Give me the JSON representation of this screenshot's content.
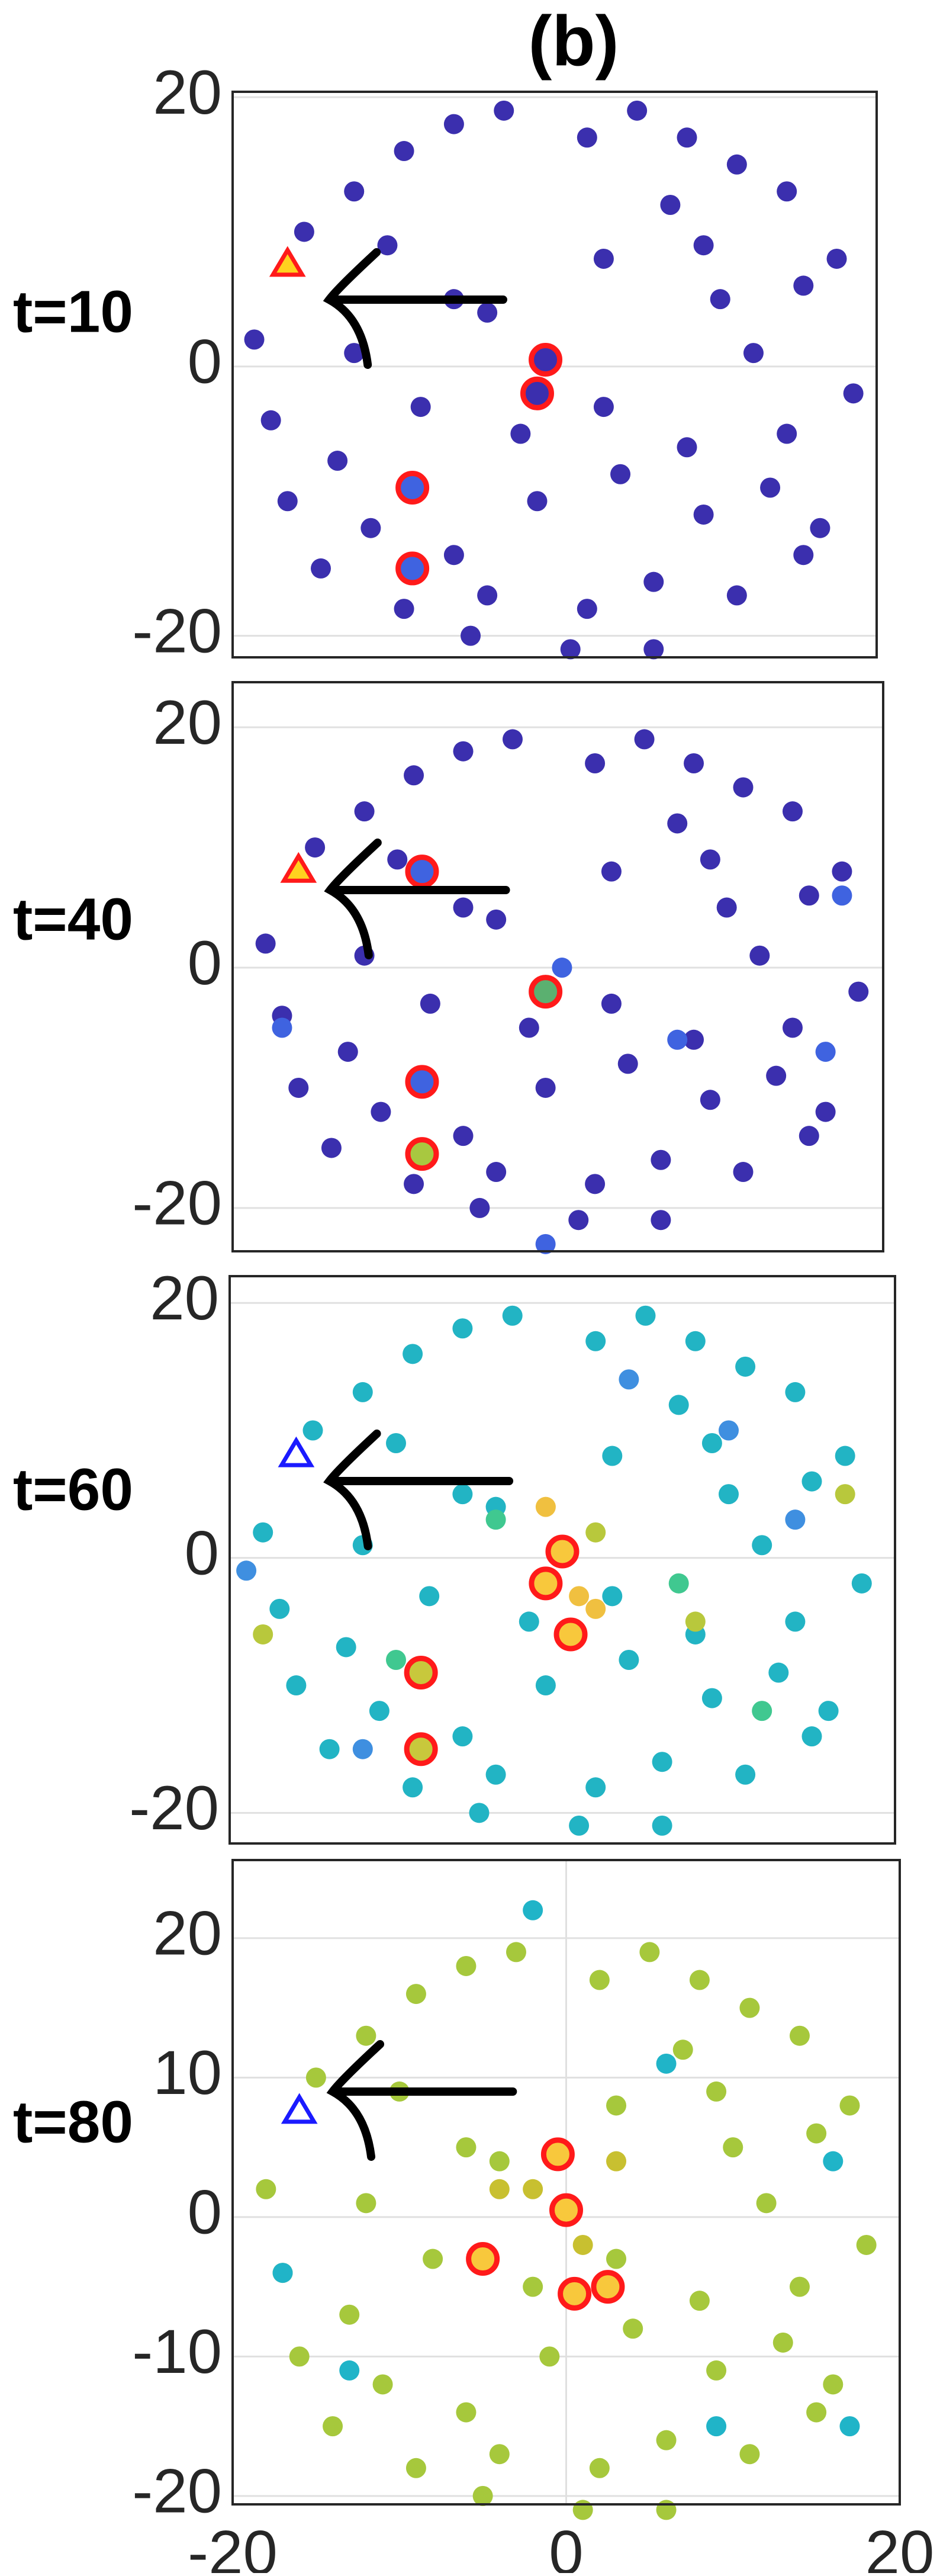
{
  "title": "(b)",
  "chart_data": [
    {
      "type": "scatter",
      "label": "t=10",
      "xlim": [
        -19.3,
        19.4
      ],
      "ylim": [
        -21.6,
        20.4
      ],
      "yticks": [
        -20,
        0,
        20
      ],
      "grid": true,
      "series": [
        {
          "color": "#3b2fae",
          "marker": "circle",
          "x": [
            -18,
            -15,
            -12,
            -9,
            -6,
            -3,
            2,
            5,
            8,
            11,
            14,
            17,
            -17,
            -13,
            -8,
            -4,
            3,
            7,
            10,
            15,
            18,
            -16,
            -11,
            -6,
            -1,
            4,
            9,
            13,
            16,
            -14,
            -9,
            -5,
            2,
            6,
            11,
            15,
            -10,
            -6,
            -2,
            3,
            8,
            12,
            -4,
            1,
            6,
            -12,
            9,
            14
          ],
          "values": [
            2,
            10,
            13,
            16,
            18,
            19,
            17,
            19,
            17,
            15,
            13,
            8,
            -4,
            -7,
            -3,
            4,
            8,
            12,
            5,
            6,
            -2,
            -10,
            -12,
            -14,
            -10,
            -8,
            -11,
            -9,
            -12,
            -15,
            -18,
            -20,
            -18,
            -16,
            -17,
            -14,
            9,
            5,
            -5,
            -3,
            -6,
            1,
            -17,
            -21,
            -21,
            1,
            9,
            -5
          ]
        },
        {
          "color": "#3b2fae",
          "edgecolor": "#ff1a1a",
          "marker": "circle",
          "x": [
            -0.5,
            -1
          ],
          "values": [
            0.5,
            -2
          ]
        },
        {
          "color": "#3f63e0",
          "edgecolor": "#ff1a1a",
          "marker": "circle",
          "x": [
            -8.5,
            -8.5
          ],
          "values": [
            -9,
            -15
          ]
        },
        {
          "color": "#ffd21f",
          "edgecolor": "#ff1a1a",
          "marker": "triangle",
          "x": [
            -16
          ],
          "values": [
            7.5
          ]
        }
      ]
    },
    {
      "type": "scatter",
      "label": "t=40",
      "xlim": [
        -20,
        19.5
      ],
      "ylim": [
        -23.6,
        23.75
      ],
      "yticks": [
        -20,
        0,
        20
      ],
      "grid": true,
      "series": [
        {
          "color": "#3b2fae",
          "marker": "circle",
          "x": [
            -18,
            -15,
            -12,
            -9,
            -6,
            -3,
            2,
            5,
            8,
            11,
            14,
            17,
            -17,
            -13,
            -8,
            -4,
            3,
            7,
            10,
            15,
            18,
            -16,
            -11,
            -6,
            -1,
            4,
            9,
            13,
            16,
            -14,
            -9,
            -5,
            2,
            6,
            11,
            15,
            -10,
            -6,
            -2,
            3,
            8,
            12,
            -4,
            1,
            6,
            -12,
            9,
            14
          ],
          "values": [
            2,
            10,
            13,
            16,
            18,
            19,
            17,
            19,
            17,
            15,
            13,
            8,
            -4,
            -7,
            -3,
            4,
            8,
            12,
            5,
            6,
            -2,
            -10,
            -12,
            -14,
            -10,
            -8,
            -11,
            -9,
            -12,
            -15,
            -18,
            -20,
            -18,
            -16,
            -17,
            -14,
            9,
            5,
            -5,
            -3,
            -6,
            1,
            -17,
            -21,
            -21,
            1,
            9,
            -5
          ]
        },
        {
          "color": "#3f63e0",
          "marker": "circle",
          "x": [
            0,
            -17,
            7,
            16,
            17,
            -1
          ],
          "values": [
            0,
            -5,
            -6,
            -7,
            6,
            -23
          ]
        },
        {
          "color": "#5bb070",
          "edgecolor": "#ff1a1a",
          "marker": "circle",
          "x": [
            -1
          ],
          "values": [
            -2
          ]
        },
        {
          "color": "#3f63e0",
          "edgecolor": "#ff1a1a",
          "marker": "circle",
          "x": [
            -8.5,
            -8.5
          ],
          "values": [
            8,
            -9.5
          ]
        },
        {
          "color": "#a8c840",
          "edgecolor": "#ff1a1a",
          "marker": "circle",
          "x": [
            -8.5
          ],
          "values": [
            -15.5
          ]
        },
        {
          "color": "#ffd21f",
          "edgecolor": "#ff1a1a",
          "marker": "triangle",
          "x": [
            -16
          ],
          "values": [
            8
          ]
        }
      ]
    },
    {
      "type": "scatter",
      "label": "t=60",
      "xlim": [
        -20,
        20
      ],
      "ylim": [
        -22.4,
        22.1
      ],
      "yticks": [
        -20,
        0,
        20
      ],
      "grid": true,
      "series": [
        {
          "color": "#22b4c4",
          "marker": "circle",
          "x": [
            -18,
            -15,
            -12,
            -9,
            -6,
            -3,
            2,
            5,
            8,
            11,
            14,
            17,
            -17,
            -13,
            -8,
            -4,
            3,
            7,
            10,
            15,
            18,
            -16,
            -11,
            -6,
            -1,
            4,
            9,
            13,
            16,
            -14,
            -9,
            -5,
            2,
            6,
            11,
            15,
            -10,
            -6,
            -2,
            3,
            8,
            12,
            -4,
            1,
            6,
            -12,
            9,
            14
          ],
          "values": [
            2,
            10,
            13,
            16,
            18,
            19,
            17,
            19,
            17,
            15,
            13,
            8,
            -4,
            -7,
            -3,
            4,
            8,
            12,
            5,
            6,
            -2,
            -10,
            -12,
            -14,
            -10,
            -8,
            -11,
            -9,
            -12,
            -15,
            -18,
            -20,
            -18,
            -16,
            -17,
            -14,
            9,
            5,
            -5,
            -3,
            -6,
            1,
            -17,
            -21,
            -21,
            1,
            9,
            -5
          ]
        },
        {
          "color": "#3f8fe0",
          "marker": "circle",
          "x": [
            -19,
            10,
            14,
            -12,
            4
          ],
          "values": [
            -1,
            10,
            3,
            -15,
            14
          ]
        },
        {
          "color": "#40c890",
          "marker": "circle",
          "x": [
            -4,
            7,
            -10,
            12
          ],
          "values": [
            3,
            -2,
            -8,
            -12
          ]
        },
        {
          "color": "#b8c83c",
          "marker": "circle",
          "x": [
            -18,
            2,
            17,
            8
          ],
          "values": [
            -6,
            2,
            5,
            -5
          ]
        },
        {
          "color": "#f0c040",
          "marker": "circle",
          "x": [
            -1,
            1,
            2
          ],
          "values": [
            4,
            -3,
            -4
          ]
        },
        {
          "color": "#f8c83c",
          "edgecolor": "#ff1a1a",
          "marker": "circle",
          "x": [
            0,
            -1,
            0.5
          ],
          "values": [
            0.5,
            -2,
            -6
          ]
        },
        {
          "color": "#c8c83c",
          "edgecolor": "#ff1a1a",
          "marker": "circle",
          "x": [
            -8.5,
            -8.5
          ],
          "values": [
            -9,
            -15
          ]
        },
        {
          "color": "none",
          "edgecolor": "#1a1aff",
          "marker": "triangle",
          "x": [
            -16
          ],
          "values": [
            8
          ]
        }
      ]
    },
    {
      "type": "scatter",
      "label": "t=80",
      "xlim": [
        -20,
        20
      ],
      "ylim": [
        -20.6,
        25.6
      ],
      "xticks": [
        -20,
        0,
        20
      ],
      "yticks": [
        -20,
        -10,
        0,
        10,
        20
      ],
      "grid": true,
      "series": [
        {
          "color": "#a6c83c",
          "marker": "circle",
          "x": [
            -18,
            -15,
            -12,
            -9,
            -6,
            -3,
            2,
            5,
            8,
            11,
            14,
            17,
            -17,
            -13,
            -8,
            -4,
            3,
            7,
            10,
            15,
            18,
            -16,
            -11,
            -6,
            -1,
            4,
            9,
            13,
            16,
            -14,
            -9,
            -5,
            2,
            6,
            11,
            15,
            -10,
            -6,
            -2,
            3,
            8,
            12,
            -4,
            1,
            6,
            -12,
            9,
            14
          ],
          "values": [
            2,
            10,
            13,
            16,
            18,
            19,
            17,
            19,
            17,
            15,
            13,
            8,
            -4,
            -7,
            -3,
            4,
            8,
            12,
            5,
            6,
            -2,
            -10,
            -12,
            -14,
            -10,
            -8,
            -11,
            -9,
            -12,
            -15,
            -18,
            -20,
            -18,
            -16,
            -17,
            -14,
            9,
            5,
            -5,
            -3,
            -6,
            1,
            -17,
            -21,
            -21,
            1,
            9,
            -5
          ]
        },
        {
          "color": "#20b4c8",
          "marker": "circle",
          "x": [
            -17,
            6,
            16,
            -13,
            9,
            -2,
            17
          ],
          "values": [
            -4,
            11,
            4,
            -11,
            -15,
            22,
            -15
          ]
        },
        {
          "color": "#c8c030",
          "marker": "circle",
          "x": [
            -4,
            3,
            -2,
            1
          ],
          "values": [
            2,
            4,
            2,
            -2
          ]
        },
        {
          "color": "#f8c83c",
          "edgecolor": "#ff1a1a",
          "marker": "circle",
          "x": [
            -0.5,
            0,
            -5,
            0.5,
            2.5
          ],
          "values": [
            4.5,
            0.5,
            -3,
            -5.5,
            -5
          ]
        },
        {
          "color": "none",
          "edgecolor": "#1a1aff",
          "marker": "triangle",
          "x": [
            -16
          ],
          "values": [
            7.5
          ]
        }
      ]
    }
  ]
}
